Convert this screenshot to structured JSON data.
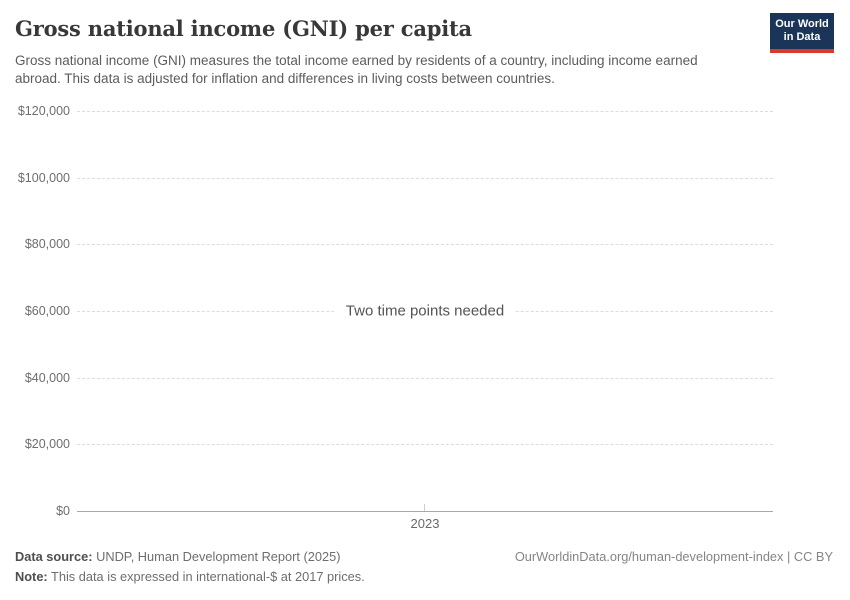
{
  "header": {
    "title": "Gross national income (GNI) per capita",
    "subtitle": "Gross national income (GNI) measures the total income earned by residents of a country, including income earned abroad. This data is adjusted for inflation and differences in living costs between countries.",
    "logo": {
      "line1": "Our World",
      "line2": "in Data"
    }
  },
  "chart_data": {
    "type": "line",
    "title": "Gross national income (GNI) per capita",
    "series": [],
    "empty_state_message": "Two time points needed",
    "x_tick_labels": [
      "2023"
    ],
    "y_tick_values": [
      0,
      20000,
      40000,
      60000,
      80000,
      100000,
      120000
    ],
    "y_tick_labels": [
      "$0",
      "$20,000",
      "$40,000",
      "$60,000",
      "$80,000",
      "$100,000",
      "$120,000"
    ],
    "ylim": [
      0,
      120000
    ],
    "grid": "horizontal-dashed",
    "legend": "none"
  },
  "footer": {
    "data_source_label": "Data source:",
    "data_source_value": " UNDP, Human Development Report (2025)",
    "note_label": "Note:",
    "note_value": " This data is expressed in international-$ at 2017 prices.",
    "rights": "OurWorldinData.org/human-development-index | CC BY"
  },
  "colors": {
    "logo_bg": "#1b3559",
    "logo_accent": "#d93a2d",
    "title_text": "#383838",
    "subtitle_text": "#5c5c5c",
    "tick_text": "#6e6e6e",
    "gridline": "#dcdcdc",
    "axis_line": "#a8a8a8",
    "message_text": "#545454",
    "footer_text": "#6e6e6e",
    "footer_right_text": "#858585"
  }
}
